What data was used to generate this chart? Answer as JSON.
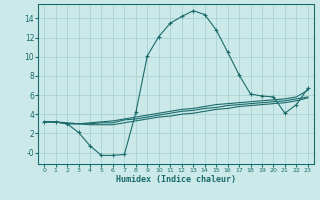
{
  "xlabel": "Humidex (Indice chaleur)",
  "bg_color": "#cce9e9",
  "grid_color": "#aad3d3",
  "line_color": "#1a6b6b",
  "xlim": [
    -0.5,
    23.5
  ],
  "ylim": [
    -1.2,
    15.5
  ],
  "xticks": [
    0,
    1,
    2,
    3,
    4,
    5,
    6,
    7,
    8,
    9,
    10,
    11,
    12,
    13,
    14,
    15,
    16,
    17,
    18,
    19,
    20,
    21,
    22,
    23
  ],
  "yticks": [
    0,
    2,
    4,
    6,
    8,
    10,
    12,
    14
  ],
  "ytick_labels": [
    "-0",
    "2",
    "4",
    "6",
    "8",
    "10",
    "12",
    "14"
  ],
  "line1_x": [
    0,
    1,
    2,
    3,
    4,
    5,
    6,
    7,
    8,
    9,
    10,
    11,
    12,
    13,
    14,
    15,
    16,
    17,
    18,
    19,
    20,
    21,
    22,
    23
  ],
  "line1_y": [
    3.2,
    3.2,
    3.0,
    2.1,
    0.7,
    -0.3,
    -0.3,
    -0.2,
    4.2,
    10.1,
    12.1,
    13.5,
    14.2,
    14.8,
    14.4,
    12.8,
    10.5,
    8.1,
    6.1,
    5.9,
    5.8,
    4.1,
    5.0,
    6.7
  ],
  "line2_x": [
    0,
    1,
    2,
    3,
    4,
    5,
    6,
    7,
    8,
    9,
    10,
    11,
    12,
    13,
    14,
    15,
    16,
    17,
    18,
    19,
    20,
    21,
    22,
    23
  ],
  "line2_y": [
    3.2,
    3.2,
    3.0,
    3.0,
    3.1,
    3.2,
    3.3,
    3.5,
    3.7,
    3.9,
    4.1,
    4.3,
    4.5,
    4.6,
    4.8,
    5.0,
    5.1,
    5.2,
    5.3,
    5.4,
    5.5,
    5.6,
    5.8,
    6.5
  ],
  "line3_x": [
    0,
    1,
    2,
    3,
    4,
    5,
    6,
    7,
    8,
    9,
    10,
    11,
    12,
    13,
    14,
    15,
    16,
    17,
    18,
    19,
    20,
    21,
    22,
    23
  ],
  "line3_y": [
    3.2,
    3.2,
    3.0,
    3.0,
    3.0,
    3.1,
    3.1,
    3.4,
    3.5,
    3.7,
    3.9,
    4.1,
    4.3,
    4.4,
    4.6,
    4.7,
    4.9,
    5.0,
    5.1,
    5.2,
    5.3,
    5.4,
    5.6,
    5.8
  ],
  "line4_x": [
    0,
    1,
    2,
    3,
    4,
    5,
    6,
    7,
    8,
    9,
    10,
    11,
    12,
    13,
    14,
    15,
    16,
    17,
    18,
    19,
    20,
    21,
    22,
    23
  ],
  "line4_y": [
    3.2,
    3.2,
    3.1,
    3.0,
    2.9,
    2.9,
    2.9,
    3.1,
    3.3,
    3.5,
    3.7,
    3.8,
    4.0,
    4.1,
    4.3,
    4.5,
    4.6,
    4.8,
    4.9,
    5.0,
    5.1,
    5.2,
    5.4,
    5.7
  ]
}
